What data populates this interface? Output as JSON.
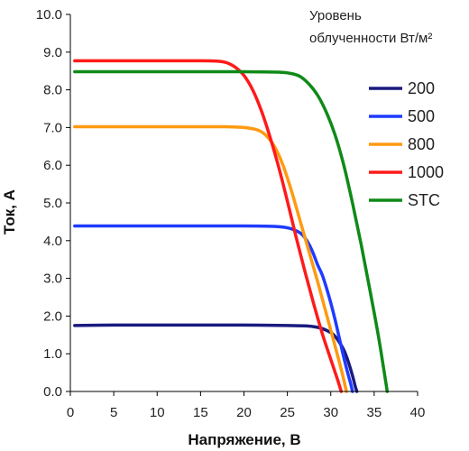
{
  "chart_data": {
    "type": "line",
    "title": "",
    "xlabel": "Напряжение, В",
    "ylabel": "Ток, А",
    "xlim": [
      0,
      40
    ],
    "ylim": [
      0,
      10
    ],
    "x_ticks": [
      "0",
      "5",
      "10",
      "15",
      "20",
      "25",
      "30",
      "35",
      "40"
    ],
    "y_ticks": [
      "0.0",
      "1.0",
      "2.0",
      "3.0",
      "4.0",
      "5.0",
      "6.0",
      "7.0",
      "8.0",
      "9.0",
      "10.0"
    ],
    "grid": false,
    "legend": {
      "title_line1": "Уровень",
      "title_line2": "облученности Вт/м²",
      "placement": "right"
    },
    "series": [
      {
        "name": "200",
        "color": "#1a1a80",
        "points": [
          [
            0.5,
            1.75
          ],
          [
            5,
            1.76
          ],
          [
            10,
            1.76
          ],
          [
            15,
            1.76
          ],
          [
            20,
            1.76
          ],
          [
            25,
            1.75
          ],
          [
            27,
            1.74
          ],
          [
            28,
            1.72
          ],
          [
            29,
            1.67
          ],
          [
            30,
            1.56
          ],
          [
            30.5,
            1.46
          ],
          [
            31,
            1.3
          ],
          [
            31.5,
            1.1
          ],
          [
            32,
            0.8
          ],
          [
            32.5,
            0.42
          ],
          [
            32.8,
            0.15
          ],
          [
            33,
            0
          ]
        ]
      },
      {
        "name": "500",
        "color": "#1f3bff",
        "points": [
          [
            0.5,
            4.39
          ],
          [
            5,
            4.39
          ],
          [
            10,
            4.39
          ],
          [
            15,
            4.39
          ],
          [
            20,
            4.39
          ],
          [
            23,
            4.38
          ],
          [
            24.5,
            4.36
          ],
          [
            25.5,
            4.31
          ],
          [
            26.5,
            4.2
          ],
          [
            27,
            4.08
          ],
          [
            27.5,
            3.9
          ],
          [
            28,
            3.65
          ],
          [
            28.5,
            3.35
          ],
          [
            29,
            3.1
          ],
          [
            29.5,
            2.75
          ],
          [
            30,
            2.35
          ],
          [
            30.5,
            1.9
          ],
          [
            31,
            1.4
          ],
          [
            31.5,
            0.9
          ],
          [
            32,
            0.45
          ],
          [
            32.3,
            0.2
          ],
          [
            32.5,
            0
          ]
        ]
      },
      {
        "name": "800",
        "color": "#ff9a10",
        "points": [
          [
            0.5,
            7.02
          ],
          [
            5,
            7.02
          ],
          [
            10,
            7.02
          ],
          [
            15,
            7.02
          ],
          [
            18,
            7.02
          ],
          [
            20,
            7.0
          ],
          [
            21.5,
            6.94
          ],
          [
            22.5,
            6.8
          ],
          [
            23.5,
            6.5
          ],
          [
            24.5,
            6.0
          ],
          [
            25.5,
            5.3
          ],
          [
            26.5,
            4.5
          ],
          [
            27.5,
            3.7
          ],
          [
            28.5,
            2.9
          ],
          [
            29.5,
            2.05
          ],
          [
            30.5,
            1.2
          ],
          [
            31.3,
            0.5
          ],
          [
            31.8,
            0
          ]
        ]
      },
      {
        "name": "1000",
        "color": "#ff1a1a",
        "points": [
          [
            0.5,
            8.77
          ],
          [
            5,
            8.77
          ],
          [
            10,
            8.77
          ],
          [
            15,
            8.77
          ],
          [
            17,
            8.76
          ],
          [
            18,
            8.72
          ],
          [
            19,
            8.6
          ],
          [
            20,
            8.38
          ],
          [
            21,
            8.0
          ],
          [
            22,
            7.45
          ],
          [
            23,
            6.75
          ],
          [
            24,
            5.95
          ],
          [
            25,
            5.05
          ],
          [
            26,
            4.1
          ],
          [
            27,
            3.2
          ],
          [
            28,
            2.35
          ],
          [
            29,
            1.55
          ],
          [
            30,
            0.85
          ],
          [
            30.8,
            0.3
          ],
          [
            31.2,
            0
          ]
        ]
      },
      {
        "name": "STC",
        "color": "#0f8a18",
        "points": [
          [
            0.5,
            8.48
          ],
          [
            5,
            8.48
          ],
          [
            10,
            8.48
          ],
          [
            15,
            8.48
          ],
          [
            20,
            8.48
          ],
          [
            24,
            8.47
          ],
          [
            25.5,
            8.43
          ],
          [
            26.5,
            8.35
          ],
          [
            27.5,
            8.15
          ],
          [
            28.5,
            7.85
          ],
          [
            29.5,
            7.4
          ],
          [
            30.5,
            6.8
          ],
          [
            31.5,
            6.0
          ],
          [
            32.5,
            5.0
          ],
          [
            33.5,
            3.9
          ],
          [
            34.5,
            2.7
          ],
          [
            35.5,
            1.45
          ],
          [
            36.3,
            0.3
          ],
          [
            36.5,
            0
          ]
        ]
      }
    ]
  }
}
